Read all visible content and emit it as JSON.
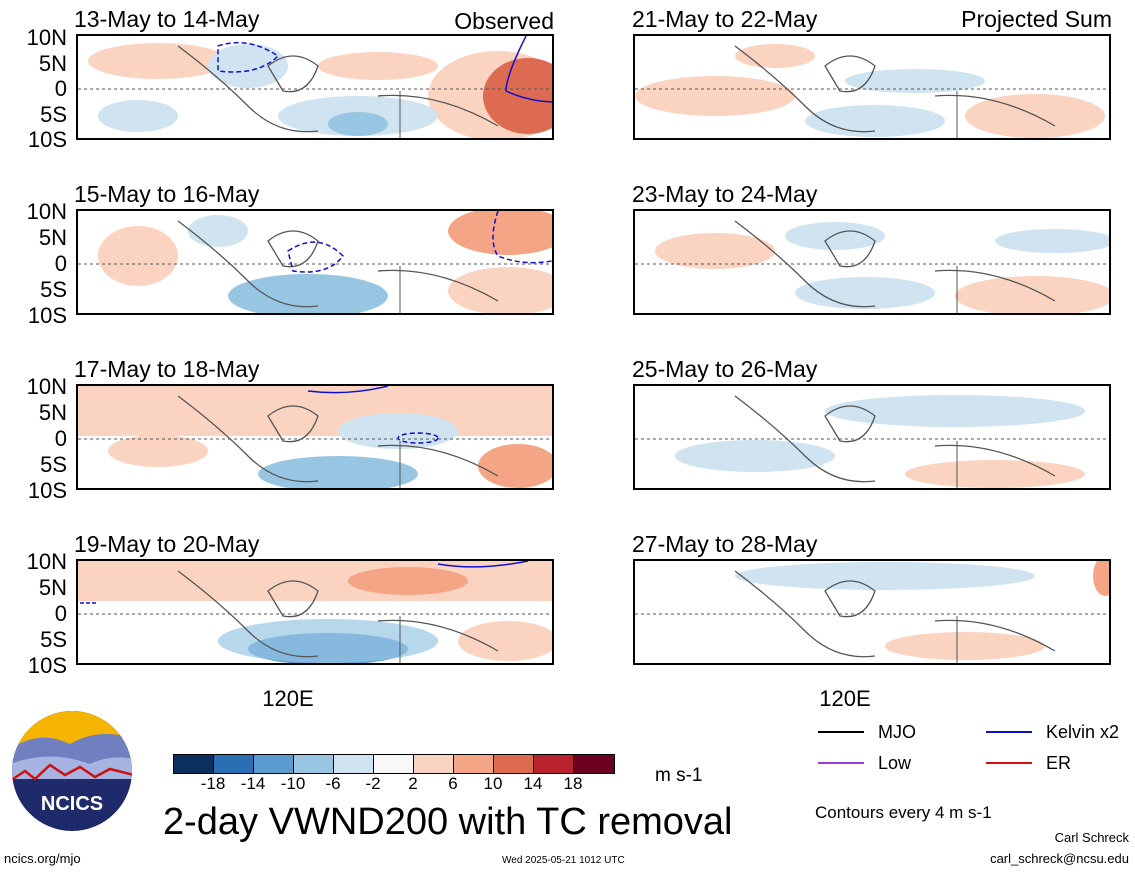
{
  "columns": [
    {
      "tag": "Observed",
      "panels": [
        {
          "title": "13-May to 14-May"
        },
        {
          "title": "15-May to 16-May"
        },
        {
          "title": "17-May to 18-May"
        },
        {
          "title": "19-May to 20-May"
        }
      ]
    },
    {
      "tag": "Projected Sum",
      "panels": [
        {
          "title": "21-May to 22-May"
        },
        {
          "title": "23-May to 24-May"
        },
        {
          "title": "25-May to 26-May"
        },
        {
          "title": "27-May to 28-May"
        }
      ]
    }
  ],
  "lat_labels": [
    "10N",
    "5N",
    "0",
    "5S",
    "10S"
  ],
  "lon_label": "120E",
  "colorbar": {
    "colors": [
      "#0b2f5e",
      "#2a6fb3",
      "#5a9bd0",
      "#98c6e2",
      "#cfe3f0",
      "#f8f8f8",
      "#fbd3c1",
      "#f3a585",
      "#dd6b52",
      "#b8222b",
      "#6b0020"
    ],
    "ticks": [
      "-18",
      "-14",
      "-10",
      "-6",
      "-2",
      "2",
      "6",
      "10",
      "14",
      "18"
    ],
    "unit": "m s-1"
  },
  "title": "2-day VWND200 with TC removal",
  "legend": [
    {
      "label": "MJO",
      "color": "#000000"
    },
    {
      "label": "Kelvin x2",
      "color": "#1010d0"
    },
    {
      "label": "Low",
      "color": "#9a3fd8"
    },
    {
      "label": "ER",
      "color": "#d01010"
    }
  ],
  "contour_note": "Contours every 4 m s-1",
  "footer": {
    "url": "ncics.org/mjo",
    "timestamp": "Wed 2025-05-21 1012 UTC",
    "author": "Carl Schreck",
    "email": "carl_schreck@ncsu.edu"
  },
  "logo_text": "NCICS"
}
